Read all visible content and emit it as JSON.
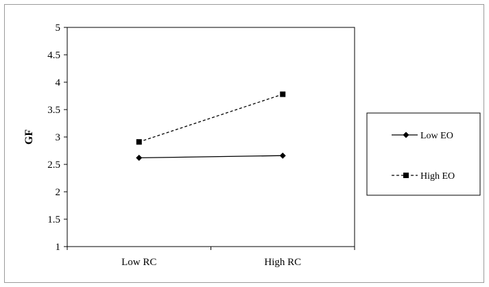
{
  "chart_data": {
    "type": "line",
    "title": "",
    "xlabel": "",
    "ylabel": "GF",
    "categories": [
      "Low RC",
      "High RC"
    ],
    "ylim": [
      1,
      5
    ],
    "yticks": [
      "1",
      "1.5",
      "2",
      "2.5",
      "3",
      "3.5",
      "4",
      "4.5",
      "5"
    ],
    "grid": false,
    "legend_position": "right",
    "series": [
      {
        "name": "Low EO",
        "values": [
          2.62,
          2.66
        ],
        "marker": "diamond",
        "line_style": "solid",
        "color": "#000000"
      },
      {
        "name": "High EO",
        "values": [
          2.91,
          3.78
        ],
        "marker": "square",
        "line_style": "dashed",
        "color": "#000000"
      }
    ]
  }
}
